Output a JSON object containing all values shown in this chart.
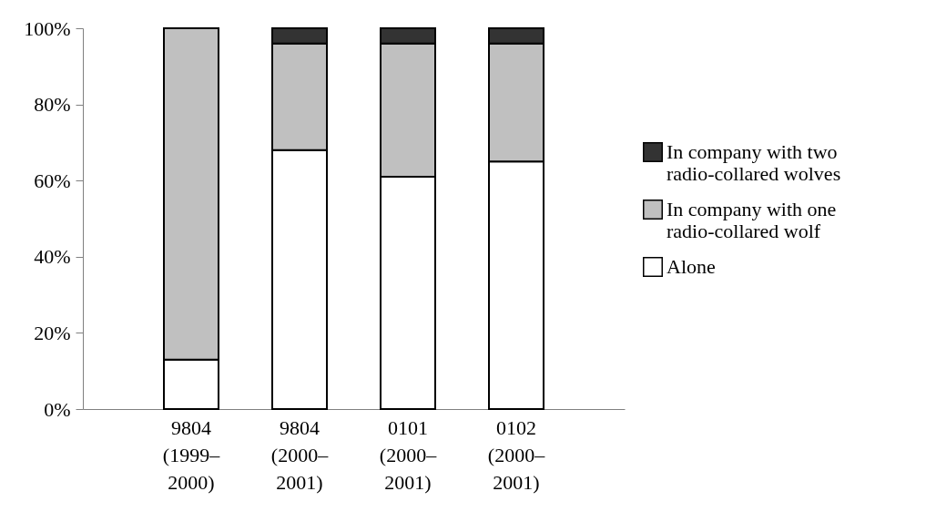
{
  "chart_data": {
    "type": "bar",
    "stacked": true,
    "categories": [
      "9804 (1999–2000)",
      "9804 (2000–2001)",
      "0101 (2000–2001)",
      "0102 (2000–2001)"
    ],
    "series": [
      {
        "name": "Alone",
        "color": "#ffffff",
        "values": [
          13,
          68,
          61,
          65
        ]
      },
      {
        "name": "In company with one radio-collared wolf",
        "color": "#c0c0c0",
        "values": [
          87,
          28,
          35,
          31
        ]
      },
      {
        "name": "In company with two radio-collared wolves",
        "color": "#333333",
        "values": [
          null,
          4,
          4,
          4
        ]
      }
    ],
    "ylim": [
      0,
      100
    ],
    "yticks": [
      {
        "value": 0,
        "label": "0%"
      },
      {
        "value": 20,
        "label": "20%"
      },
      {
        "value": 40,
        "label": "40%"
      },
      {
        "value": 60,
        "label": "60%"
      },
      {
        "value": 80,
        "label": "80%"
      },
      {
        "value": 100,
        "label": "100%"
      }
    ],
    "grid": false,
    "legend": "right"
  }
}
